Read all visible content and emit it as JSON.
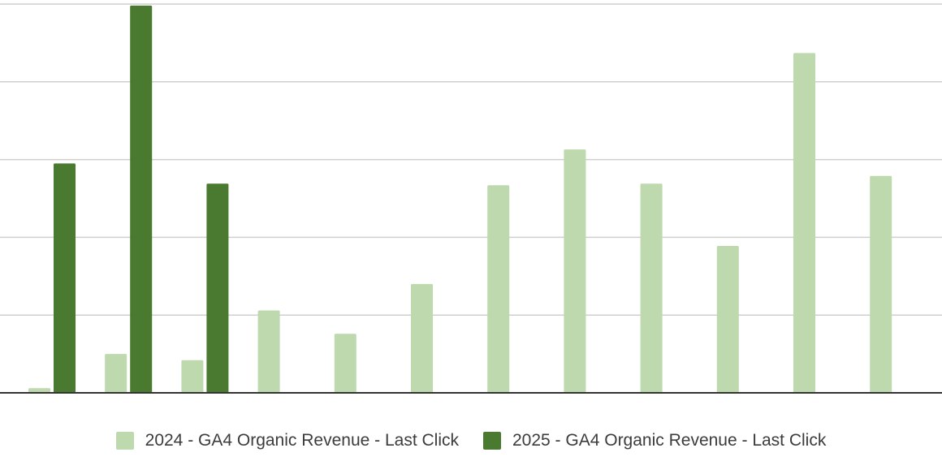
{
  "chart_data": {
    "type": "bar",
    "title": "",
    "xlabel": "",
    "ylabel": "",
    "grid": true,
    "legend_position": "bottom",
    "categories": [
      "",
      "",
      "",
      "",
      "",
      "",
      "",
      "",
      "",
      "",
      "",
      ""
    ],
    "ylim": [
      0,
      5
    ],
    "series": [
      {
        "name": "2024 - GA4 Organic Revenue - Last Click",
        "color": "#bdd9ad",
        "values": [
          0.06,
          0.5,
          0.42,
          1.06,
          0.76,
          1.4,
          2.67,
          3.13,
          2.69,
          1.89,
          4.37,
          2.79
        ]
      },
      {
        "name": "2025 - GA4 Organic Revenue - Last Click",
        "color": "#4a7a2f",
        "values": [
          2.95,
          4.98,
          2.69,
          null,
          null,
          null,
          null,
          null,
          null,
          null,
          null,
          null
        ]
      }
    ]
  }
}
